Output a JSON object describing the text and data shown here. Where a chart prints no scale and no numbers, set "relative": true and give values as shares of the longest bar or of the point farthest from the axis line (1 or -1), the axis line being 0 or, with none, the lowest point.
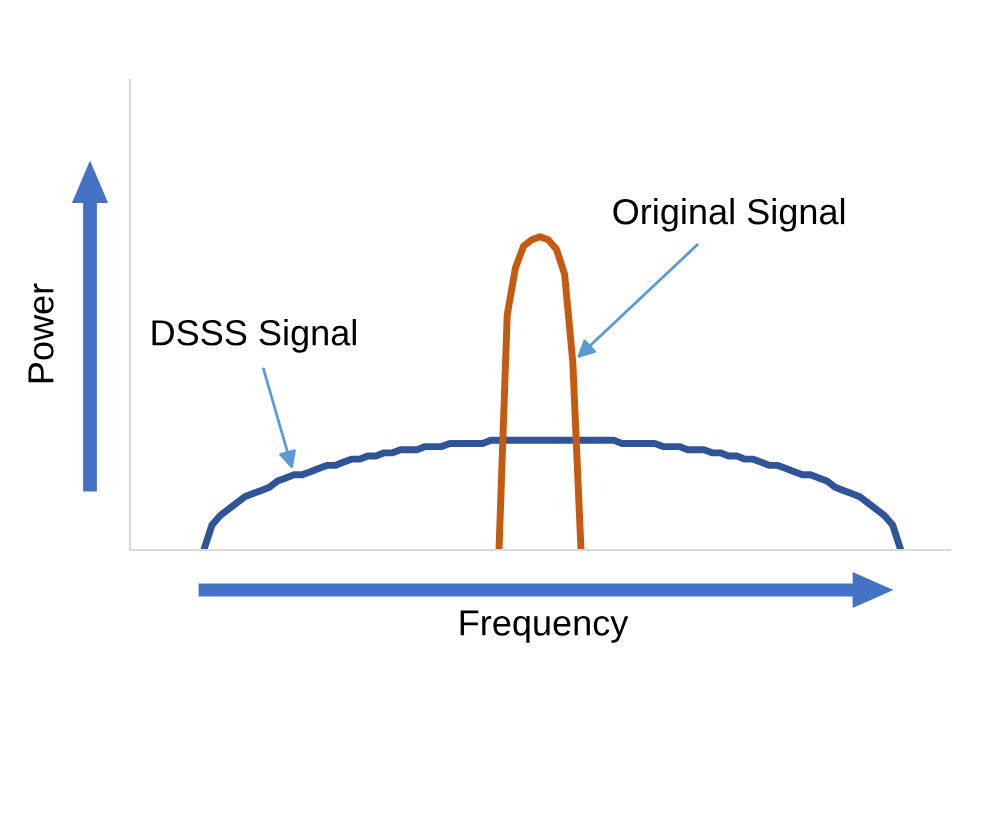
{
  "chart_data": {
    "type": "line",
    "relative": true,
    "xlabel": "Frequency",
    "ylabel": "Power",
    "categories": [
      null,
      null,
      null,
      null,
      null,
      null,
      null,
      null,
      null,
      null,
      null,
      null,
      null,
      null,
      null,
      null,
      null,
      null,
      null,
      null,
      null,
      null,
      null,
      null,
      null,
      null,
      null,
      null,
      null,
      null,
      null,
      null,
      null,
      null,
      null,
      null,
      null,
      null,
      null,
      null,
      null,
      null,
      null,
      null,
      null,
      null,
      null,
      null,
      null,
      null,
      null,
      null,
      null,
      null,
      null,
      null,
      null,
      null,
      null,
      null,
      null,
      null,
      null,
      null,
      null,
      null,
      null,
      null,
      null,
      null,
      null,
      null,
      null,
      null,
      null,
      null,
      null,
      null,
      null,
      null,
      null,
      null,
      null,
      null,
      null,
      null,
      null,
      null,
      null,
      null,
      null,
      null,
      null,
      null,
      null,
      null,
      null,
      null,
      null,
      null,
      null
    ],
    "series": [
      {
        "name": "DSSS Signal",
        "color": "#2f5597",
        "values": [
          null,
          null,
          null,
          null,
          null,
          null,
          null,
          null,
          null,
          0,
          0.08,
          0.11,
          0.13,
          0.15,
          0.17,
          0.18,
          0.19,
          0.2,
          0.22,
          0.23,
          0.24,
          0.24,
          0.25,
          0.26,
          0.27,
          0.27,
          0.28,
          0.29,
          0.29,
          0.3,
          0.3,
          0.31,
          0.31,
          0.32,
          0.32,
          0.32,
          0.33,
          0.33,
          0.33,
          0.34,
          0.34,
          0.34,
          0.34,
          0.34,
          0.35,
          0.35,
          0.35,
          0.35,
          0.35,
          0.35,
          0.35,
          0.35,
          0.35,
          0.35,
          0.35,
          0.35,
          0.35,
          0.35,
          0.35,
          0.35,
          0.34,
          0.34,
          0.34,
          0.34,
          0.34,
          0.33,
          0.33,
          0.33,
          0.32,
          0.32,
          0.32,
          0.31,
          0.31,
          0.3,
          0.3,
          0.29,
          0.29,
          0.28,
          0.27,
          0.27,
          0.26,
          0.25,
          0.24,
          0.24,
          0.23,
          0.22,
          0.2,
          0.19,
          0.18,
          0.17,
          0.15,
          0.13,
          0.11,
          0.08,
          0,
          null,
          null,
          null,
          null,
          null,
          null
        ]
      },
      {
        "name": "Original Signal",
        "color": "#c55a11",
        "values": [
          null,
          null,
          null,
          null,
          null,
          null,
          null,
          null,
          null,
          null,
          null,
          null,
          null,
          null,
          null,
          null,
          null,
          null,
          null,
          null,
          null,
          null,
          null,
          null,
          null,
          null,
          null,
          null,
          null,
          null,
          null,
          null,
          null,
          null,
          null,
          null,
          null,
          null,
          null,
          null,
          null,
          null,
          null,
          null,
          null,
          0,
          0.75,
          0.9,
          0.97,
          0.99,
          1,
          0.99,
          0.96,
          0.88,
          0.6,
          0,
          null,
          null,
          null,
          null,
          null,
          null,
          null,
          null,
          null,
          null,
          null,
          null,
          null,
          null,
          null,
          null,
          null,
          null,
          null,
          null,
          null,
          null,
          null,
          null,
          null,
          null,
          null,
          null,
          null,
          null,
          null,
          null,
          null,
          null,
          null,
          null,
          null,
          null,
          null,
          null,
          null,
          null,
          null,
          null,
          null
        ]
      }
    ]
  }
}
